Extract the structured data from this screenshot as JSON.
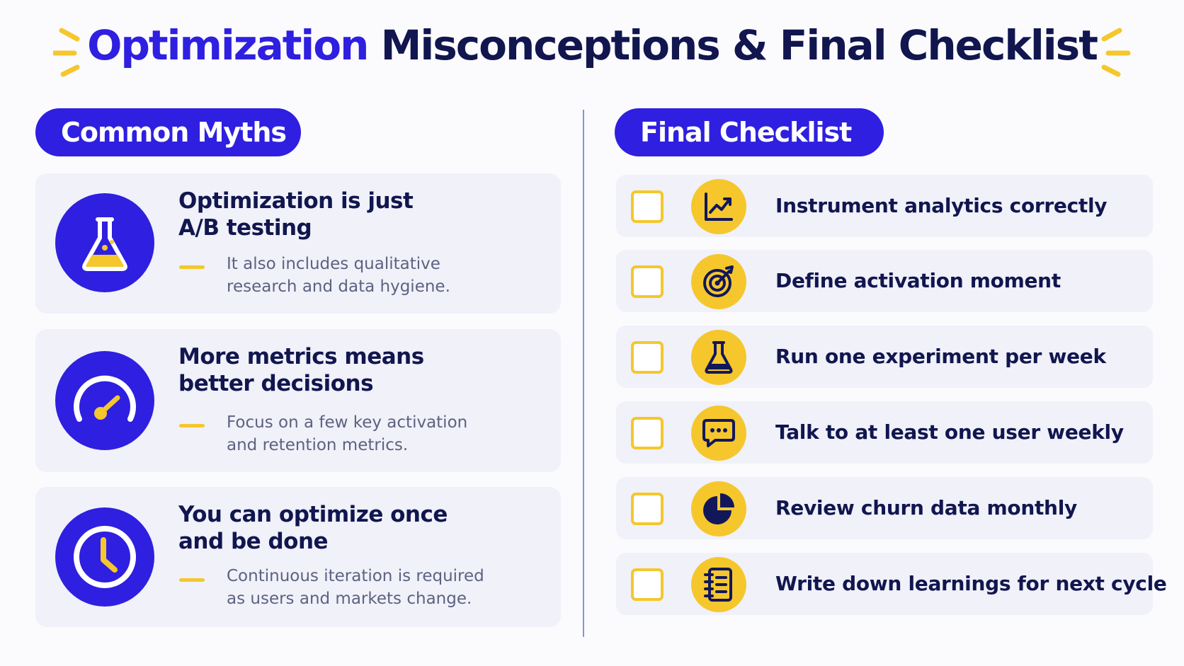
{
  "title": {
    "accent": "Optimization",
    "rest": "Misconceptions & Final Checklist"
  },
  "colors": {
    "primary": "#2f1fe0",
    "accent_yellow": "#f5c72c",
    "dark_text": "#11164f",
    "card_bg": "#f0f1f9"
  },
  "myths": {
    "heading": "Common Myths",
    "items": [
      {
        "title_line1": "Optimization is just",
        "title_line2": "A/B testing",
        "desc_line1": "It also includes qualitative",
        "desc_line2": "research and data hygiene.",
        "icon": "flask-icon"
      },
      {
        "title_line1": "More metrics means",
        "title_line2": "better decisions",
        "desc_line1": "Focus on a few key activation",
        "desc_line2": "and retention metrics.",
        "icon": "gauge-icon"
      },
      {
        "title_line1": "You can optimize once",
        "title_line2": "and be done",
        "desc_line1": "Continuous iteration is required",
        "desc_line2": "as users and markets change.",
        "icon": "clock-icon"
      }
    ]
  },
  "checklist": {
    "heading": "Final Checklist",
    "items": [
      {
        "label": "Instrument analytics correctly",
        "icon": "line-chart-icon"
      },
      {
        "label": "Define activation moment",
        "icon": "target-icon"
      },
      {
        "label": "Run one experiment per week",
        "icon": "flask-icon"
      },
      {
        "label": "Talk to at least one user weekly",
        "icon": "chat-bubble-icon"
      },
      {
        "label": "Review churn data monthly",
        "icon": "pie-chart-icon"
      },
      {
        "label": "Write down learnings for next cycle",
        "icon": "notebook-icon"
      }
    ]
  }
}
